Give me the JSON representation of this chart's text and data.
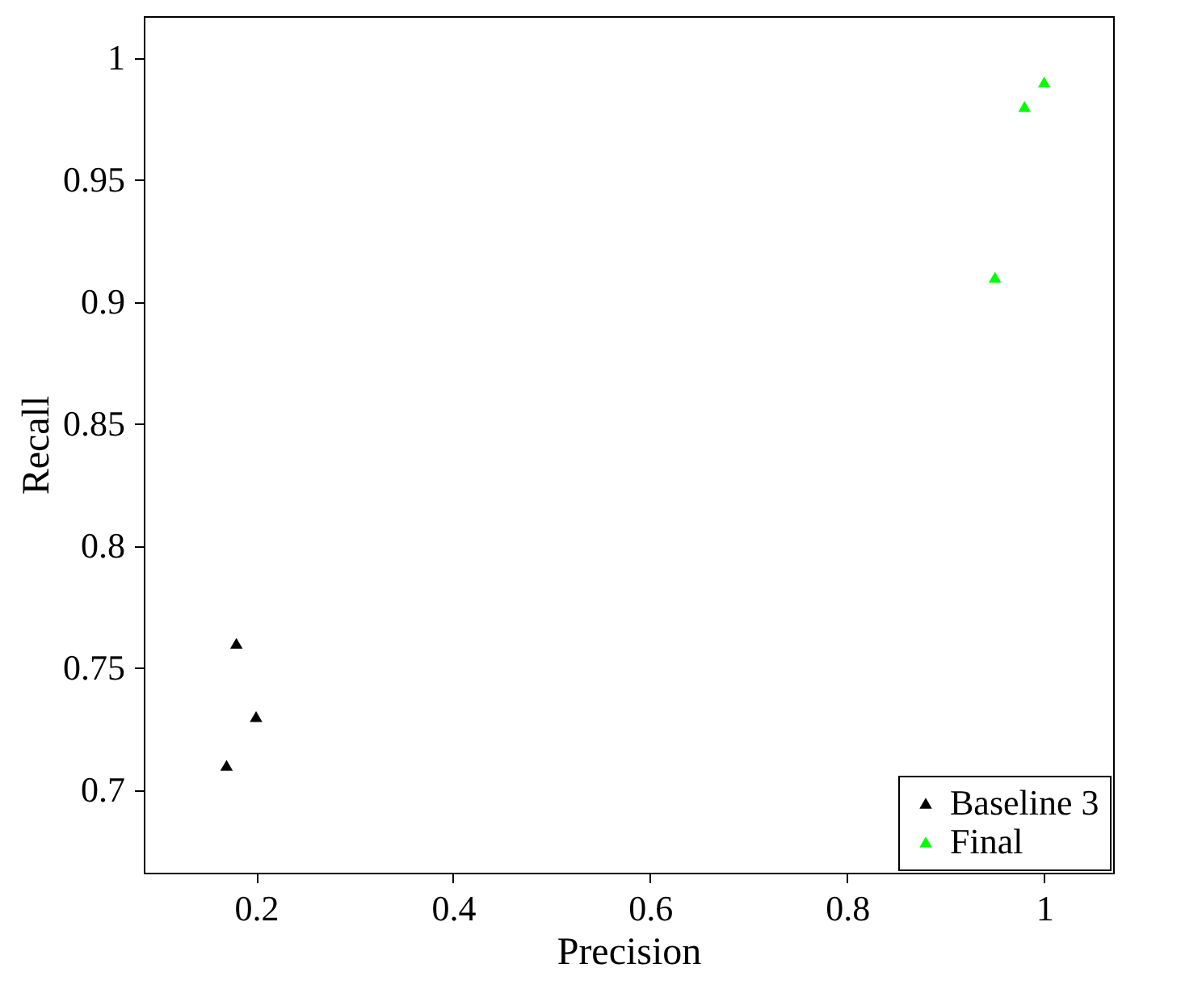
{
  "chart_data": {
    "type": "scatter",
    "xlabel": "Precision",
    "ylabel": "Recall",
    "xlim": [
      0.086,
      1.07
    ],
    "ylim": [
      0.666,
      1.017
    ],
    "xticks": [
      0.2,
      0.4,
      0.6,
      0.8,
      1
    ],
    "yticks": [
      0.7,
      0.75,
      0.8,
      0.85,
      0.9,
      0.95,
      1
    ],
    "grid": false,
    "legend": "bottom right",
    "marker": "triangle",
    "series": [
      {
        "name": "Baseline 3",
        "color": "#000000",
        "x": [
          0.18,
          0.2,
          0.17
        ],
        "values": [
          0.76,
          0.73,
          0.71
        ]
      },
      {
        "name": "Final",
        "color": "#00ff00",
        "x": [
          0.95,
          0.98,
          1.0
        ],
        "values": [
          0.91,
          0.98,
          0.99
        ]
      }
    ]
  }
}
